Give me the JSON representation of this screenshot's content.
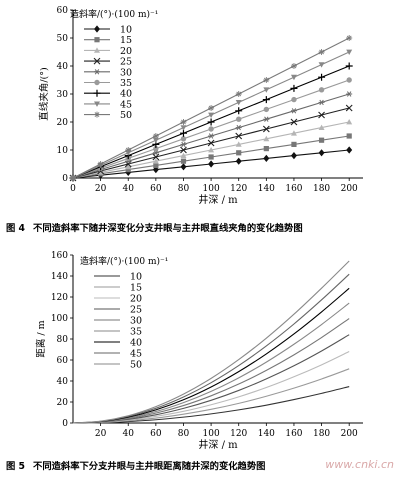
{
  "chart_data": [
    {
      "type": "line",
      "title": "",
      "xlabel": "井深 / m",
      "ylabel": "直线夹角/(°)",
      "legend_title": "造斜率/(°)·(100 m)⁻¹",
      "legend_position": "top-left",
      "xlim": [
        0,
        210
      ],
      "ylim": [
        0,
        60
      ],
      "xticks": [
        0,
        20,
        40,
        60,
        80,
        100,
        120,
        140,
        160,
        180,
        200
      ],
      "yticks": [
        0,
        10,
        20,
        30,
        40,
        50,
        60
      ],
      "grid": false,
      "x": [
        0,
        20,
        40,
        60,
        80,
        100,
        120,
        140,
        160,
        180,
        200
      ],
      "series": [
        {
          "name": "10",
          "marker": "diamond",
          "values": [
            0,
            1,
            2,
            3,
            4,
            5,
            6,
            7,
            8,
            9,
            10
          ]
        },
        {
          "name": "15",
          "marker": "square",
          "values": [
            0,
            1.5,
            3,
            4.5,
            6,
            7.5,
            9,
            10.5,
            12,
            13.5,
            15
          ]
        },
        {
          "name": "20",
          "marker": "triangle",
          "values": [
            0,
            2,
            4,
            6,
            8,
            10,
            12,
            14,
            16,
            18,
            20
          ]
        },
        {
          "name": "25",
          "marker": "x",
          "values": [
            0,
            2.5,
            5,
            7.5,
            10,
            12.5,
            15,
            17.5,
            20,
            22.5,
            25
          ]
        },
        {
          "name": "30",
          "marker": "asterisk",
          "values": [
            0,
            3,
            6,
            9,
            12,
            15,
            18,
            21,
            24,
            27,
            30
          ]
        },
        {
          "name": "35",
          "marker": "circle",
          "values": [
            0,
            3.5,
            7,
            10.5,
            14,
            17.5,
            21,
            24.5,
            28,
            31.5,
            35
          ]
        },
        {
          "name": "40",
          "marker": "plus",
          "values": [
            0,
            4,
            8,
            12,
            16,
            20,
            24,
            28,
            32,
            36,
            40
          ]
        },
        {
          "name": "45",
          "marker": "triangle-down",
          "values": [
            0,
            4.5,
            9,
            13.5,
            18,
            22.5,
            27,
            31.5,
            36,
            40.5,
            45
          ]
        },
        {
          "name": "50",
          "marker": "star",
          "values": [
            0,
            5,
            10,
            15,
            20,
            25,
            30,
            35,
            40,
            45,
            50
          ]
        }
      ],
      "caption_number": "图 4",
      "caption": "不同造斜率下随井深变化分支井眼与主井眼直线夹角的变化趋势图"
    },
    {
      "type": "line",
      "title": "",
      "xlabel": "井深 / m",
      "ylabel": "距离 / m",
      "legend_title": "造斜率/(°)·(100 m)⁻¹",
      "legend_position": "top-left",
      "xlim": [
        0,
        210
      ],
      "ylim": [
        0,
        160
      ],
      "xticks": [
        20,
        40,
        60,
        80,
        100,
        120,
        140,
        160,
        180,
        200
      ],
      "yticks": [
        0,
        20,
        40,
        60,
        80,
        100,
        120,
        140,
        160
      ],
      "grid": false,
      "x": [
        0,
        20,
        40,
        60,
        80,
        100,
        120,
        140,
        160,
        180,
        200
      ],
      "series": [
        {
          "name": "10",
          "values": [
            0,
            0.3,
            1.4,
            3.1,
            5.6,
            8.7,
            12.5,
            17.0,
            22.3,
            28.2,
            34.7
          ]
        },
        {
          "name": "15",
          "values": [
            0,
            0.5,
            2.1,
            4.7,
            8.4,
            13.0,
            18.7,
            25.5,
            33.2,
            41.9,
            51.6
          ]
        },
        {
          "name": "20",
          "values": [
            0,
            0.7,
            2.8,
            6.3,
            11.1,
            17.4,
            24.9,
            33.8,
            44.0,
            55.4,
            68.1
          ]
        },
        {
          "name": "25",
          "values": [
            0,
            0.9,
            3.5,
            7.8,
            13.9,
            21.6,
            31.0,
            42.0,
            54.5,
            68.6,
            84.1
          ]
        },
        {
          "name": "30",
          "values": [
            0,
            1.0,
            4.2,
            9.4,
            16.6,
            25.9,
            37.1,
            50.1,
            64.9,
            81.4,
            99.5
          ]
        },
        {
          "name": "35",
          "values": [
            0,
            1.2,
            4.9,
            10.9,
            19.4,
            30.1,
            43.0,
            58.0,
            75.0,
            93.8,
            114.2
          ]
        },
        {
          "name": "40",
          "values": [
            0,
            1.4,
            5.6,
            12.5,
            22.1,
            34.3,
            48.9,
            65.8,
            84.8,
            105.8,
            128.3
          ]
        },
        {
          "name": "45",
          "values": [
            0,
            1.6,
            6.3,
            14.0,
            24.8,
            38.4,
            54.7,
            73.4,
            94.3,
            117.3,
            141.7
          ]
        },
        {
          "name": "50",
          "values": [
            0,
            1.7,
            6.9,
            15.6,
            27.5,
            42.5,
            60.4,
            80.8,
            103.6,
            128.4,
            154.3
          ]
        }
      ],
      "caption_number": "图 5",
      "caption": "不同造斜率下分支井眼与主井眼距离随井深的变化趋势图"
    }
  ],
  "watermark": "www.cnki.cn"
}
